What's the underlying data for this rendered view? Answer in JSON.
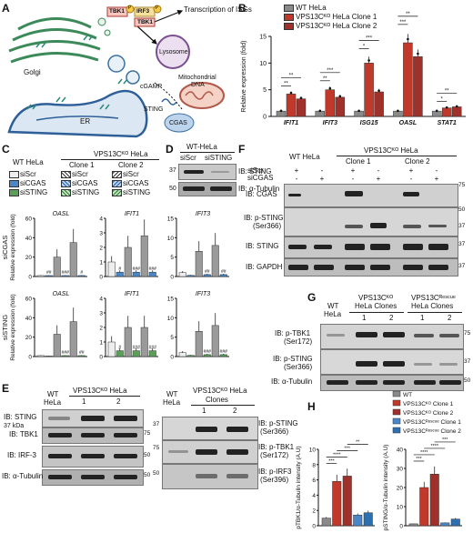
{
  "panels": {
    "A": "A",
    "B": "B",
    "C": "C",
    "D": "D",
    "E": "E",
    "F": "F",
    "G": "G",
    "H": "H"
  },
  "diagram": {
    "tbk1": "TBK1",
    "irf3": "IRF3",
    "p": "P",
    "transcription": "Transcription of ISGs",
    "lysosome": "Lysosome",
    "golgi": "Golgi",
    "cgamp": "cGAMP",
    "mtdna_1": "Mitochondrial",
    "mtdna_2": "DNA",
    "sting": "STING",
    "er": "ER",
    "cgas": "CGAS"
  },
  "panel_b": {
    "legend": [
      "WT HeLa",
      "VPS13Cᴷᴼ HeLa Clone 1",
      "VPS13Cᴷᴼ HeLa Clone 2"
    ],
    "ylabel": "Relative expression (fold)",
    "sig": [
      "**",
      "**",
      "**",
      "***",
      "*",
      "***",
      "***",
      "**",
      "*",
      "**"
    ]
  },
  "panel_c": {
    "header_wt": "WT HeLa",
    "header_ko": "VPS13Cᴷᴼ HeLa",
    "clone1": "Clone 1",
    "clone2": "Clone 2",
    "legend": [
      "siScr",
      "siCGAS",
      "siSTING"
    ],
    "row1_label": "siCGAS",
    "row2_label": "siSTING",
    "row1_titles": [
      "OASL",
      "IFIT1",
      "IFIT3"
    ],
    "row2_titles": [
      "OASL",
      "IFIT1",
      "IFIT3"
    ],
    "ylabel": "Relative expression (fold)"
  },
  "panel_d": {
    "title": "WT-HeLa",
    "lanes": [
      "siScr",
      "siSTING"
    ],
    "blots": [
      "IB: STING",
      "IB: α-Tubulin"
    ],
    "mw": [
      "37",
      "50"
    ]
  },
  "panel_e": {
    "header": "VPS13Cᴷᴼ HeLa",
    "clones": "Clones",
    "wt_1": "WT",
    "wt_2": "HeLa",
    "lanes": [
      "1",
      "2"
    ],
    "left_blots": [
      "IB: STING",
      "IB: TBK1",
      "IB: IRF-3",
      "IB: α-Tubulin"
    ],
    "left_mw": [
      "37 kDa",
      "75",
      "50",
      "50"
    ],
    "right_blots_1": [
      "IB: p-STING",
      "IB: p-TBK1",
      "IB: p-IRF3"
    ],
    "right_blots_2": [
      "(Ser366)",
      "(Ser172)",
      "(Ser396)"
    ],
    "right_mw": [
      "37",
      "75",
      "50"
    ]
  },
  "panel_f": {
    "wt": "WT HeLa",
    "ko": "VPS13Cᴷᴼ HeLa",
    "clone1": "Clone 1",
    "clone2": "Clone 2",
    "row_siscr": "siScr",
    "row_sicgas": "siCGAS",
    "blots": [
      "IB: CGAS",
      "IB: p-STING",
      "IB: STING",
      "IB: GAPDH"
    ],
    "ser": "(Ser366)",
    "mw": [
      "75",
      "50",
      "37",
      "37",
      "37"
    ]
  },
  "panel_g": {
    "wt_1": "WT",
    "wt_2": "HeLa",
    "ko_1": "VPS13Cᴷᴼ",
    "ko_2": "HeLa Clones",
    "res_1": "VPS13Cᴿᵉˢᶜᵘᵉ",
    "res_2": "HeLa Clones",
    "lanes": [
      "1",
      "2",
      "1",
      "2"
    ],
    "blots_1": [
      "IB: p-TBK1",
      "IB: p-STING",
      "IB: α-Tubulin"
    ],
    "blots_2": [
      "(Ser172)",
      "(Ser366)",
      ""
    ],
    "mw": [
      "75",
      "37",
      "50"
    ]
  },
  "panel_h": {
    "legend": [
      "WT",
      "VPS13Cᴷᴼ Clone 1",
      "VPS13Cᴷᴼ Clone 2",
      "VPS13Cᴿᵉˢᶜᵘᵉ Clone 1",
      "VPS13Cᴿᵉˢᶜᵘᵉ Clone 2"
    ],
    "ylabel_left": "pTBK1/α-Tubulin intensity (A.U)",
    "ylabel_right": "pSTING/α-Tubulin intensity (A.U)",
    "sig_left": [
      "***",
      "****",
      "***",
      "**"
    ],
    "sig_right": [
      "***",
      "****",
      "****",
      "***"
    ]
  },
  "chart_data": [
    {
      "type": "bar",
      "panel": "B",
      "categories": [
        "IFIT1",
        "IFIT3",
        "ISG15",
        "OASL",
        "STAT1"
      ],
      "series": [
        {
          "name": "WT HeLa",
          "values": [
            1.0,
            1.0,
            1.0,
            1.0,
            1.0
          ]
        },
        {
          "name": "VPS13Cᴷᴼ HeLa Clone 1",
          "values": [
            4.2,
            5.0,
            10.0,
            13.8,
            1.6
          ]
        },
        {
          "name": "VPS13Cᴷᴼ HeLa Clone 2",
          "values": [
            3.3,
            3.6,
            4.6,
            11.2,
            1.8
          ]
        }
      ],
      "ylim": [
        0,
        15
      ],
      "yticks": [
        0,
        5,
        10,
        15
      ],
      "colors": [
        "#8a8a8a",
        "#c0392b",
        "#a0302a"
      ]
    },
    {
      "type": "bar",
      "panel": "C-siCGAS-OASL",
      "values": [
        1,
        1,
        20,
        1,
        35,
        1
      ],
      "ylim": [
        0,
        60
      ],
      "yticks": [
        0,
        20,
        40,
        60
      ],
      "labels": [
        "",
        "##",
        "",
        "###",
        "",
        "#"
      ]
    },
    {
      "type": "bar",
      "panel": "C-siCGAS-IFIT1",
      "values": [
        1.0,
        0.3,
        2.0,
        0.3,
        2.8,
        0.3
      ],
      "ylim": [
        0,
        4
      ],
      "yticks": [
        0,
        1,
        2,
        3,
        4
      ],
      "labels": [
        "",
        "#",
        "",
        "###",
        "",
        "###"
      ]
    },
    {
      "type": "bar",
      "panel": "C-siCGAS-IFIT3",
      "values": [
        1,
        0.3,
        6.5,
        0.5,
        8,
        0.5
      ],
      "ylim": [
        0,
        15
      ],
      "yticks": [
        0,
        5,
        10,
        15
      ],
      "labels": [
        "",
        "",
        "",
        "##",
        "",
        "##"
      ]
    },
    {
      "type": "bar",
      "panel": "C-siSTING-OASL",
      "values": [
        1,
        0.5,
        23,
        1,
        36,
        1
      ],
      "ylim": [
        0,
        60
      ],
      "yticks": [
        0,
        20,
        40,
        60
      ],
      "labels": [
        "",
        "",
        "",
        "###",
        "",
        "##"
      ]
    },
    {
      "type": "bar",
      "panel": "C-siSTING-IFIT1",
      "values": [
        1.0,
        0.4,
        2.0,
        0.4,
        2.0,
        0.4
      ],
      "ylim": [
        0,
        4
      ],
      "yticks": [
        0,
        1,
        2,
        3,
        4
      ],
      "labels": [
        "",
        "#",
        "",
        "###",
        "",
        "###"
      ]
    },
    {
      "type": "bar",
      "panel": "C-siSTING-IFIT3",
      "values": [
        1,
        0.3,
        6.5,
        0.5,
        8,
        0.5
      ],
      "ylim": [
        0,
        15
      ],
      "yticks": [
        0,
        5,
        10,
        15
      ],
      "labels": [
        "",
        "",
        "",
        "###",
        "",
        "###"
      ]
    },
    {
      "type": "bar",
      "panel": "H-pTBK1",
      "categories": [
        "WT",
        "VPS13Cᴷᴼ Clone 1",
        "VPS13Cᴷᴼ Clone 2",
        "VPS13Cᴿᵉˢᶜᵘᵉ Clone 1",
        "VPS13Cᴿᵉˢᶜᵘᵉ Clone 2"
      ],
      "values": [
        1.0,
        5.8,
        6.5,
        1.4,
        1.7
      ],
      "ylim": [
        0,
        10
      ],
      "yticks": [
        0,
        2,
        4,
        6,
        8,
        10
      ]
    },
    {
      "type": "bar",
      "panel": "H-pSTING",
      "categories": [
        "WT",
        "VPS13Cᴷᴼ Clone 1",
        "VPS13Cᴷᴼ Clone 2",
        "VPS13Cᴿᵉˢᶜᵘᵉ Clone 1",
        "VPS13Cᴿᵉˢᶜᵘᵉ Clone 2"
      ],
      "values": [
        1.0,
        20.0,
        27.0,
        1.5,
        3.5
      ],
      "ylim": [
        0,
        40
      ],
      "yticks": [
        0,
        10,
        20,
        30,
        40
      ]
    }
  ]
}
